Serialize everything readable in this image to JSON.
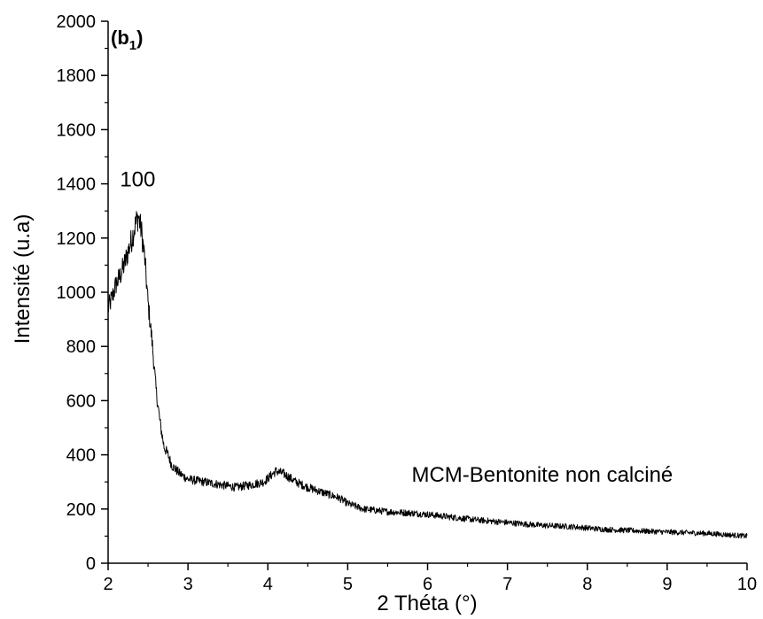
{
  "chart_data": {
    "type": "line",
    "panel_label": "(b",
    "panel_label_sub": "1",
    "panel_label_close": ")",
    "xlabel": "2 Théta (°)",
    "ylabel": "Intensité (u.a)",
    "xlim": [
      2,
      10
    ],
    "ylim": [
      0,
      2000
    ],
    "xticks": [
      2,
      3,
      4,
      5,
      6,
      7,
      8,
      9,
      10
    ],
    "yticks": [
      0,
      200,
      400,
      600,
      800,
      1000,
      1200,
      1400,
      1600,
      1800,
      2000
    ],
    "grid": false,
    "annotations": [
      {
        "text": "100",
        "x": 2.37,
        "y": 1390
      },
      {
        "text": "MCM-Bentonite non calciné",
        "x": 5.8,
        "y": 300
      }
    ],
    "series": [
      {
        "color": "#000000",
        "x": [
          2.0,
          2.05,
          2.1,
          2.15,
          2.2,
          2.25,
          2.3,
          2.35,
          2.38,
          2.42,
          2.46,
          2.5,
          2.55,
          2.6,
          2.65,
          2.7,
          2.75,
          2.8,
          2.9,
          3.0,
          3.2,
          3.4,
          3.6,
          3.8,
          3.95,
          4.1,
          4.2,
          4.35,
          4.5,
          4.7,
          4.9,
          5.0,
          5.2,
          5.5,
          5.8,
          6.0,
          6.3,
          6.6,
          7.0,
          7.4,
          7.8,
          8.2,
          8.6,
          9.0,
          9.5,
          10.0
        ],
        "y": [
          940,
          980,
          1030,
          1060,
          1100,
          1150,
          1200,
          1260,
          1280,
          1220,
          1120,
          960,
          820,
          640,
          520,
          430,
          400,
          360,
          330,
          310,
          300,
          290,
          280,
          290,
          300,
          340,
          330,
          300,
          280,
          260,
          240,
          220,
          200,
          190,
          185,
          180,
          170,
          160,
          150,
          140,
          135,
          125,
          120,
          115,
          110,
          100
        ]
      }
    ]
  }
}
